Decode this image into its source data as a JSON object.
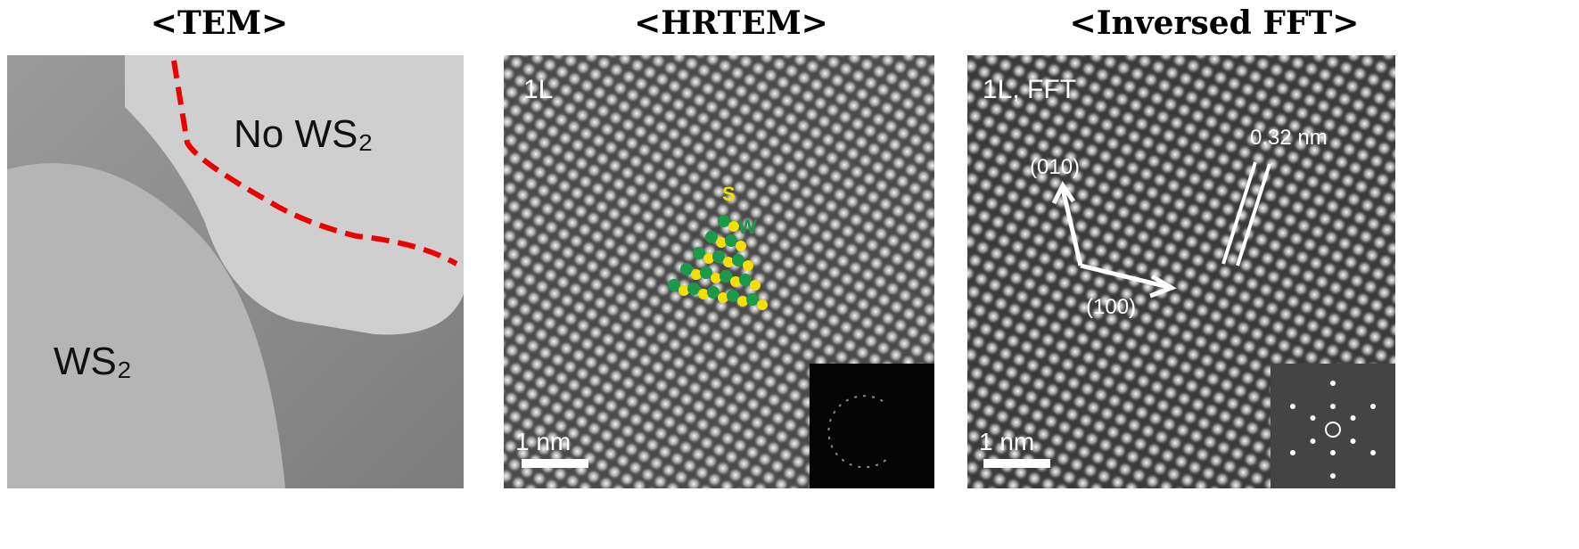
{
  "panels": [
    {
      "title": "<TEM>",
      "labels": [
        "No WS₂",
        "WS₂"
      ]
    },
    {
      "title": "<HRTEM>",
      "labels": [
        "1L",
        "S",
        "W",
        "1 nm"
      ]
    },
    {
      "title": "<Inversed FFT>",
      "labels": [
        "1L, FFT",
        "0.32 nm",
        "(010)",
        "(100)",
        "1 nm"
      ]
    }
  ]
}
